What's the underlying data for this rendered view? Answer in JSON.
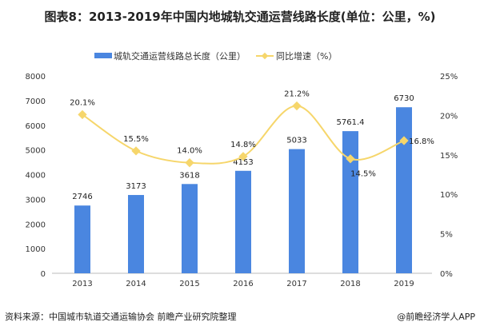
{
  "chart_data": {
    "type": "bar+line",
    "title": "图表8：2013-2019年中国内地城轨交通运营线路长度(单位：公里，%)",
    "categories": [
      "2013",
      "2014",
      "2015",
      "2016",
      "2017",
      "2018",
      "2019"
    ],
    "series": [
      {
        "name": "城轨交通运营线路总长度（公里）",
        "type": "bar",
        "axis": "left",
        "color": "#4a86e0",
        "values": [
          2746,
          3173,
          3618,
          4153,
          5033,
          5761.4,
          6730
        ],
        "labels": [
          "2746",
          "3173",
          "3618",
          "4153",
          "5033",
          "5761.4",
          "6730"
        ]
      },
      {
        "name": "同比增速（%）",
        "type": "line",
        "axis": "right",
        "color": "#f6d66b",
        "values": [
          20.1,
          15.5,
          14.0,
          14.8,
          21.2,
          14.5,
          16.8
        ],
        "labels": [
          "20.1%",
          "15.5%",
          "14.0%",
          "14.8%",
          "21.2%",
          "14.5%",
          "16.8%"
        ]
      }
    ],
    "left_axis": {
      "range": [
        0,
        8000
      ],
      "ticks": [
        "0",
        "1000",
        "2000",
        "3000",
        "4000",
        "5000",
        "6000",
        "7000",
        "8000"
      ]
    },
    "right_axis": {
      "range": [
        0,
        25
      ],
      "ticks": [
        "0%",
        "5%",
        "10%",
        "15%",
        "20%",
        "25%"
      ]
    },
    "legend_placement": "top-center",
    "grid": false
  },
  "footer": {
    "source": "资料来源：中国城市轨道交通运输协会 前瞻产业研究院整理",
    "credit": "@前瞻经济学人APP"
  }
}
